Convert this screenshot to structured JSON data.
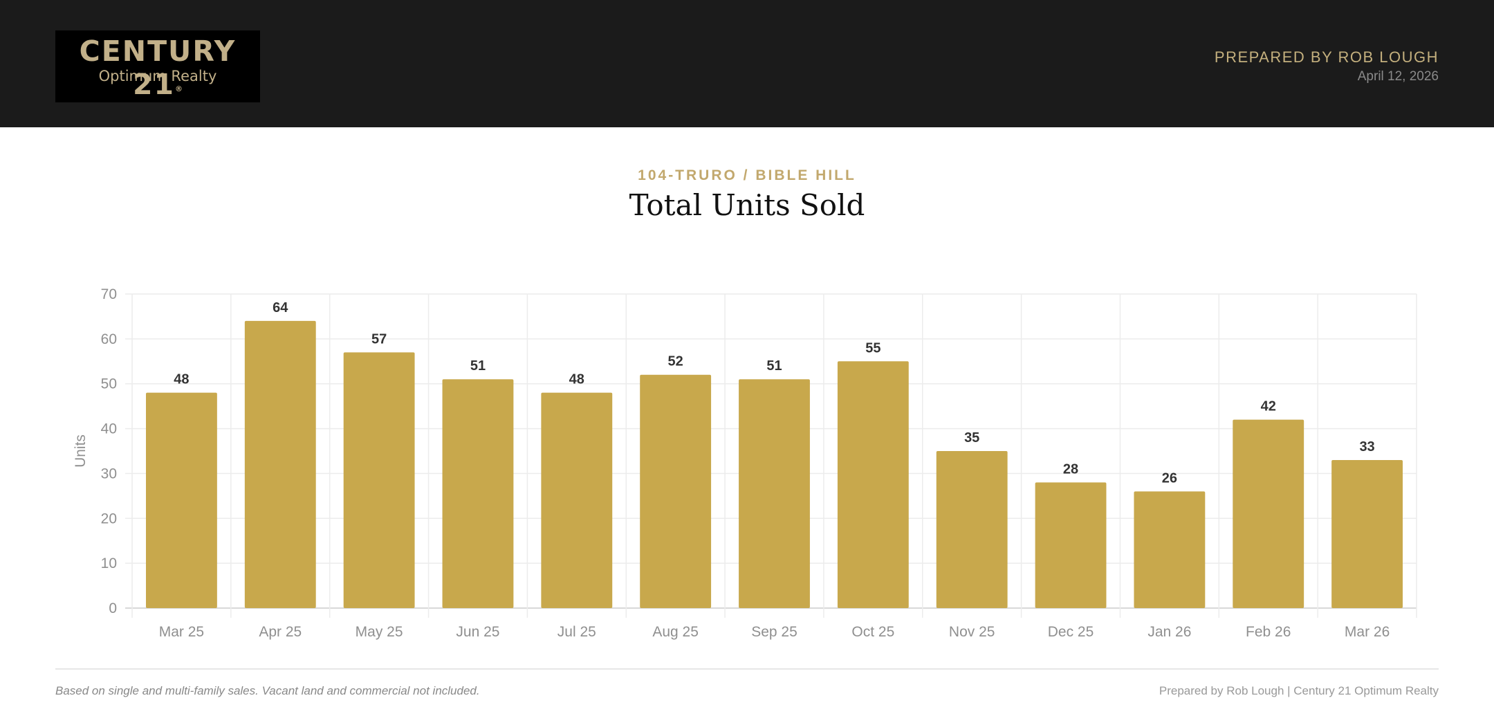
{
  "header": {
    "logo": {
      "brand": "CENTURY 21",
      "registered_mark": "®",
      "subtitle": "Optimum Realty"
    },
    "prepared_by": "PREPARED BY ROB LOUGH",
    "date": "April 12, 2026"
  },
  "report": {
    "region": "104-TRURO / BIBLE HILL"
  },
  "colors": {
    "bar": "#c8a84c",
    "accent": "#c4b07e",
    "header_bg": "#1b1b1b"
  },
  "chart_data": {
    "type": "bar",
    "title": "Total Units Sold",
    "ylabel": "Units",
    "xlabel": "",
    "categories": [
      "Mar 25",
      "Apr 25",
      "May 25",
      "Jun 25",
      "Jul 25",
      "Aug 25",
      "Sep 25",
      "Oct 25",
      "Nov 25",
      "Dec 25",
      "Jan 26",
      "Feb 26",
      "Mar 26"
    ],
    "values": [
      48,
      64,
      57,
      51,
      48,
      52,
      51,
      55,
      35,
      28,
      26,
      42,
      33
    ],
    "ylim": [
      0,
      70
    ],
    "yticks": [
      0,
      10,
      20,
      30,
      40,
      50,
      60,
      70
    ],
    "data_labels": true,
    "grid": true,
    "legend": "none"
  },
  "footer": {
    "note": "Based on single and multi-family sales. Vacant land and commercial not included.",
    "credit": "Prepared by Rob Lough | Century 21 Optimum Realty"
  }
}
